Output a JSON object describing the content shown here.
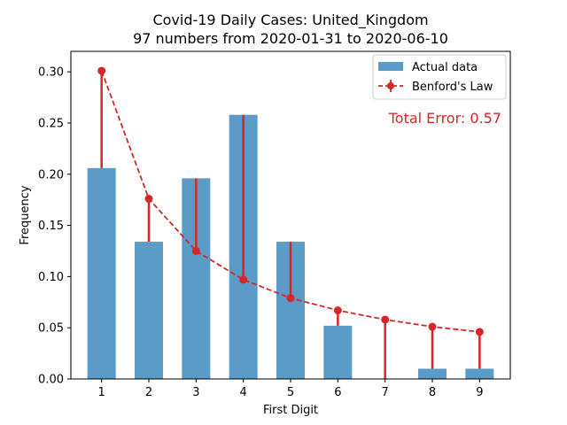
{
  "chart_data": {
    "type": "bar",
    "title": "Covid-19 Daily Cases: United_Kingdom",
    "subtitle": "97 numbers from 2020-01-31 to 2020-06-10",
    "xlabel": "First Digit",
    "ylabel": "Frequency",
    "categories": [
      "1",
      "2",
      "3",
      "4",
      "5",
      "6",
      "7",
      "8",
      "9"
    ],
    "x": [
      1,
      2,
      3,
      4,
      5,
      6,
      7,
      8,
      9
    ],
    "series": [
      {
        "name": "Actual data",
        "type": "bar",
        "color": "#5b9bc8",
        "values": [
          0.206,
          0.134,
          0.196,
          0.258,
          0.134,
          0.052,
          0.0,
          0.01,
          0.01
        ]
      },
      {
        "name": "Benford's Law",
        "type": "line",
        "style": "dashed",
        "marker": "circle",
        "color": "#d62728",
        "values": [
          0.301,
          0.176,
          0.125,
          0.097,
          0.079,
          0.067,
          0.058,
          0.051,
          0.046
        ]
      }
    ],
    "ylim": [
      0,
      0.32
    ],
    "xlim": [
      0.35,
      9.65
    ],
    "yticks": [
      "0.00",
      "0.05",
      "0.10",
      "0.15",
      "0.20",
      "0.25",
      "0.30"
    ],
    "grid": false,
    "legend_position": "top-right",
    "annotation": {
      "text": "Total Error: 0.57",
      "color": "#d62728"
    }
  }
}
